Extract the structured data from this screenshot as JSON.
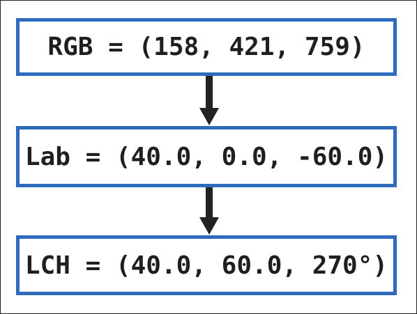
{
  "steps": [
    {
      "text": "RGB = (158, 421, 759)"
    },
    {
      "text": "Lab = (40.0, 0.0, -60.0)"
    },
    {
      "text": "LCH = (40.0, 60.0, 270°)"
    }
  ],
  "colors": {
    "box_border": "#2f6bbd",
    "arrow": "#222222",
    "text": "#1f1f1f",
    "frame": "#222222"
  },
  "icons": {
    "connector": "arrow-down-icon"
  }
}
